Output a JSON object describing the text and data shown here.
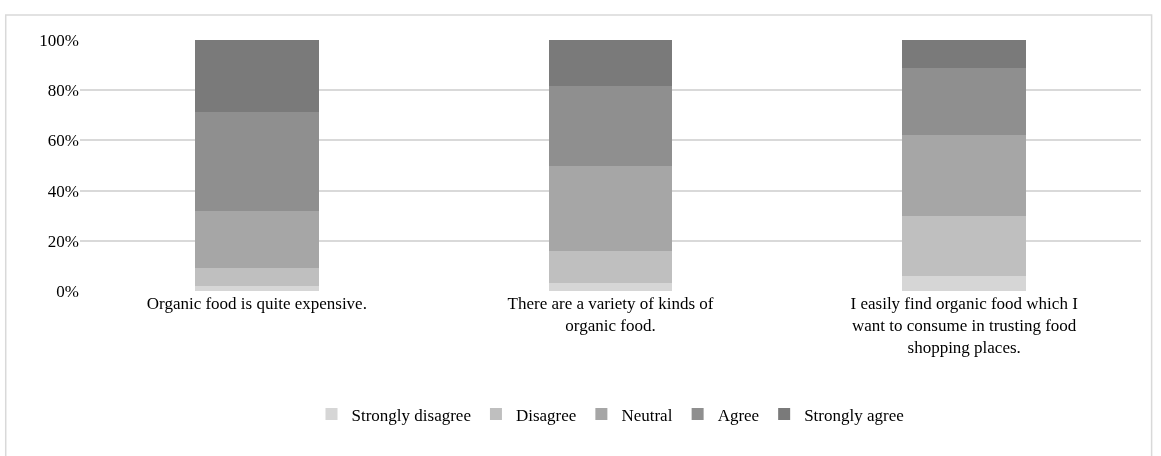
{
  "chart_data": {
    "type": "bar",
    "stacked": true,
    "categories": [
      "Organic food is quite expensive.",
      "There are a variety of kinds of organic food.",
      "I easily find organic food which I want to consume in trusting food shopping places."
    ],
    "series": [
      {
        "name": "Strongly disagree",
        "color": "#d6d6d6",
        "values": [
          2,
          3,
          6
        ]
      },
      {
        "name": "Disagree",
        "color": "#bfbfbf",
        "values": [
          7,
          13,
          24
        ]
      },
      {
        "name": "Neutral",
        "color": "#a6a6a6",
        "values": [
          23,
          34,
          32
        ]
      },
      {
        "name": "Agree",
        "color": "#8f8f8f",
        "values": [
          39.5,
          31.5,
          27
        ]
      },
      {
        "name": "Strongly agree",
        "color": "#7a7a7a",
        "values": [
          28.5,
          18.5,
          11
        ]
      }
    ],
    "ylim": [
      0,
      100
    ],
    "yticks": [
      {
        "value": 0,
        "label": "0%"
      },
      {
        "value": 20,
        "label": "20%"
      },
      {
        "value": 40,
        "label": "40%"
      },
      {
        "value": 60,
        "label": "60%"
      },
      {
        "value": 80,
        "label": "80%"
      },
      {
        "value": 100,
        "label": "100%"
      }
    ],
    "grid": "y",
    "legend": "bottom"
  }
}
